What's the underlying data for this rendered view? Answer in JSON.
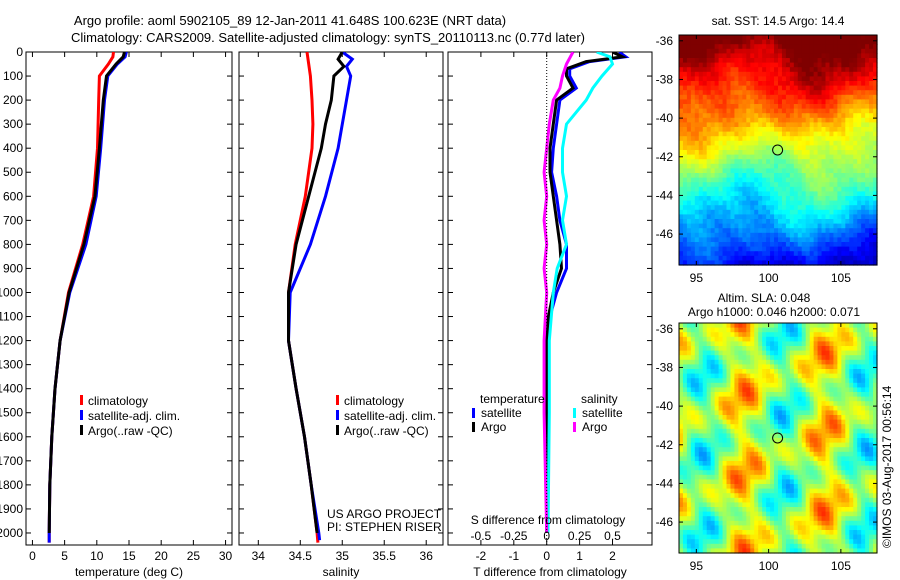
{
  "title_line1": "Argo profile: aoml 5902105_89 12-Jan-2011 41.648S 100.623E (NRT data)",
  "title_line2": "Climatology: CARS2009. Satellite-adjusted climatology: synTS_20110113.nc (0.77d later)",
  "credit": "US ARGO PROJECT",
  "pi": "PI: STEPHEN RISER",
  "copyright": "©IMOS 03-Aug-2017 00:56:14",
  "colors": {
    "climatology": "#ff0000",
    "satellite": "#0000ff",
    "argo": "#000000",
    "s_satellite": "#00ffff",
    "s_argo": "#ff00ff"
  },
  "chart_data": [
    {
      "type": "line",
      "id": "temperature",
      "xlabel": "temperature (deg C)",
      "xlim": [
        -1,
        31
      ],
      "ylim": [
        2050,
        0
      ],
      "xticks": [
        0,
        5,
        10,
        15,
        20,
        25,
        30
      ],
      "yticks": [
        0,
        100,
        200,
        300,
        400,
        500,
        600,
        700,
        800,
        900,
        1000,
        1100,
        1200,
        1300,
        1400,
        1500,
        1600,
        1700,
        1800,
        1900,
        2000
      ],
      "legend": [
        "climatology",
        "satellite-adj. clim.",
        "Argo(..raw -QC)"
      ],
      "series": [
        {
          "name": "climatology",
          "color": "#ff0000",
          "depth": [
            0,
            20,
            50,
            100,
            200,
            400,
            600,
            800,
            1000,
            1200,
            1400,
            1600,
            1800,
            2000,
            2040
          ],
          "values": [
            12.6,
            12.5,
            11.8,
            10.4,
            10.3,
            10.1,
            9.5,
            7.8,
            5.6,
            4.3,
            3.5,
            3.0,
            2.7,
            2.6,
            2.6
          ]
        },
        {
          "name": "satellite-adj. clim.",
          "color": "#0000ff",
          "depth": [
            0,
            20,
            50,
            100,
            200,
            400,
            600,
            800,
            1000,
            1200,
            1400,
            1600,
            1800,
            2000,
            2040
          ],
          "values": [
            14.6,
            14.4,
            13.2,
            11.7,
            11.2,
            10.6,
            9.9,
            8.3,
            5.8,
            4.3,
            3.5,
            3.0,
            2.7,
            2.6,
            2.6
          ]
        },
        {
          "name": "Argo(..raw -QC)",
          "color": "#000000",
          "depth": [
            0,
            20,
            50,
            100,
            200,
            400,
            600,
            800,
            1000,
            1200,
            1400,
            1600,
            1800,
            2000
          ],
          "values": [
            14.3,
            14.1,
            13.0,
            11.5,
            11.0,
            10.4,
            9.7,
            8.0,
            5.7,
            4.3,
            3.5,
            3.0,
            2.7,
            2.6
          ]
        }
      ]
    },
    {
      "type": "line",
      "id": "salinity",
      "xlabel": "salinity",
      "xlim": [
        33.77,
        36.2
      ],
      "ylim": [
        2050,
        0
      ],
      "xticks": [
        34,
        34.5,
        35,
        35.5,
        36
      ],
      "legend": [
        "climatology",
        "satellite-adj. clim.",
        "Argo(..raw -QC)"
      ],
      "series": [
        {
          "name": "climatology",
          "color": "#ff0000",
          "depth": [
            0,
            50,
            100,
            200,
            300,
            400,
            600,
            800,
            1000,
            1200,
            1400,
            1600,
            1800,
            2000,
            2040
          ],
          "values": [
            34.58,
            34.6,
            34.62,
            34.64,
            34.65,
            34.64,
            34.56,
            34.44,
            34.36,
            34.36,
            34.45,
            34.55,
            34.63,
            34.7,
            34.71
          ]
        },
        {
          "name": "satellite-adj. clim.",
          "color": "#0000ff",
          "depth": [
            0,
            30,
            60,
            100,
            200,
            300,
            400,
            600,
            800,
            1000,
            1200,
            1400,
            1600,
            1800,
            2000,
            2030
          ],
          "values": [
            35.0,
            35.12,
            35.05,
            35.1,
            35.05,
            35.0,
            34.95,
            34.8,
            34.62,
            34.38,
            34.36,
            34.45,
            34.55,
            34.63,
            34.72,
            34.73
          ]
        },
        {
          "name": "Argo(..raw -QC)",
          "color": "#000000",
          "depth": [
            0,
            30,
            60,
            100,
            200,
            300,
            400,
            600,
            800,
            1000,
            1200,
            1400,
            1600,
            1800,
            2000
          ],
          "values": [
            35.0,
            34.95,
            35.02,
            34.9,
            34.87,
            34.8,
            34.75,
            34.6,
            34.45,
            34.36,
            34.36,
            34.45,
            34.55,
            34.63,
            34.7
          ]
        }
      ]
    },
    {
      "type": "line",
      "id": "difference",
      "xlabel": "T difference from climatology",
      "x2label": "S difference from climatology",
      "xlim": [
        -3,
        3.2
      ],
      "ylim": [
        2050,
        0
      ],
      "xticks": [
        -2,
        -1,
        0,
        1,
        2
      ],
      "x2ticks": [
        -0.5,
        -0.25,
        0,
        0.25,
        0.5
      ],
      "legend_titles": [
        "temperature",
        "salinity"
      ],
      "legend": [
        "satellite",
        "Argo",
        "satellite",
        "Argo"
      ],
      "series": [
        {
          "name": "T satellite",
          "color": "#0000ff",
          "depth": [
            0,
            20,
            40,
            70,
            100,
            150,
            200,
            300,
            400,
            500,
            600,
            700,
            800,
            900,
            1000,
            1100,
            1200,
            1500,
            2000
          ],
          "values": [
            2.2,
            2.4,
            1.3,
            0.7,
            0.7,
            0.9,
            0.4,
            0.3,
            0.2,
            0.15,
            0.3,
            0.4,
            0.6,
            0.6,
            0.3,
            0.1,
            0.05,
            0.05,
            0.0
          ]
        },
        {
          "name": "T Argo",
          "color": "#000000",
          "depth": [
            0,
            20,
            40,
            70,
            100,
            150,
            200,
            300,
            400,
            500,
            600,
            700,
            800,
            900,
            1000,
            1100,
            1200,
            1500,
            2000
          ],
          "values": [
            2.0,
            2.3,
            1.2,
            0.6,
            0.6,
            0.8,
            0.3,
            0.2,
            0.1,
            0.1,
            0.2,
            0.3,
            0.4,
            0.45,
            0.2,
            0.05,
            0.0,
            0.0,
            0.0
          ]
        },
        {
          "name": "S satellite",
          "color": "#00ffff",
          "depth": [
            0,
            20,
            50,
            100,
            150,
            200,
            300,
            400,
            500,
            600,
            700,
            800,
            900,
            1000,
            1200,
            1500,
            2000
          ],
          "values": [
            0.38,
            0.48,
            0.5,
            0.42,
            0.35,
            0.3,
            0.15,
            0.12,
            0.12,
            0.15,
            0.12,
            0.15,
            0.08,
            0.05,
            0.02,
            0.02,
            0.01
          ]
        },
        {
          "name": "S Argo",
          "color": "#ff00ff",
          "depth": [
            0,
            20,
            50,
            100,
            150,
            200,
            300,
            400,
            500,
            600,
            700,
            800,
            900,
            1000,
            1200,
            1500,
            2000
          ],
          "values": [
            0.2,
            0.18,
            0.15,
            0.12,
            0.1,
            0.05,
            0.02,
            0.0,
            -0.02,
            0.0,
            -0.02,
            0.0,
            -0.02,
            0.0,
            -0.02,
            -0.02,
            0.0
          ]
        }
      ]
    },
    {
      "type": "heatmap",
      "id": "sst_map",
      "title": "sat. SST: 14.5 Argo: 14.4",
      "xlim": [
        93.8,
        107.5
      ],
      "ylim": [
        -47.6,
        -35.7
      ],
      "xticks": [
        95,
        100,
        105
      ],
      "yticks": [
        -36,
        -38,
        -40,
        -42,
        -44,
        -46
      ],
      "marker": [
        100.623,
        -41.648
      ]
    },
    {
      "type": "heatmap",
      "id": "sla_map",
      "title_line1": "Altim. SLA: 0.048",
      "title_line2": "Argo h1000: 0.046 h2000: 0.071",
      "xlim": [
        93.8,
        107.5
      ],
      "ylim": [
        -47.6,
        -35.7
      ],
      "xticks": [
        95,
        100,
        105
      ],
      "yticks": [
        -36,
        -38,
        -40,
        -42,
        -44,
        -46
      ],
      "marker": [
        100.623,
        -41.648
      ]
    }
  ]
}
